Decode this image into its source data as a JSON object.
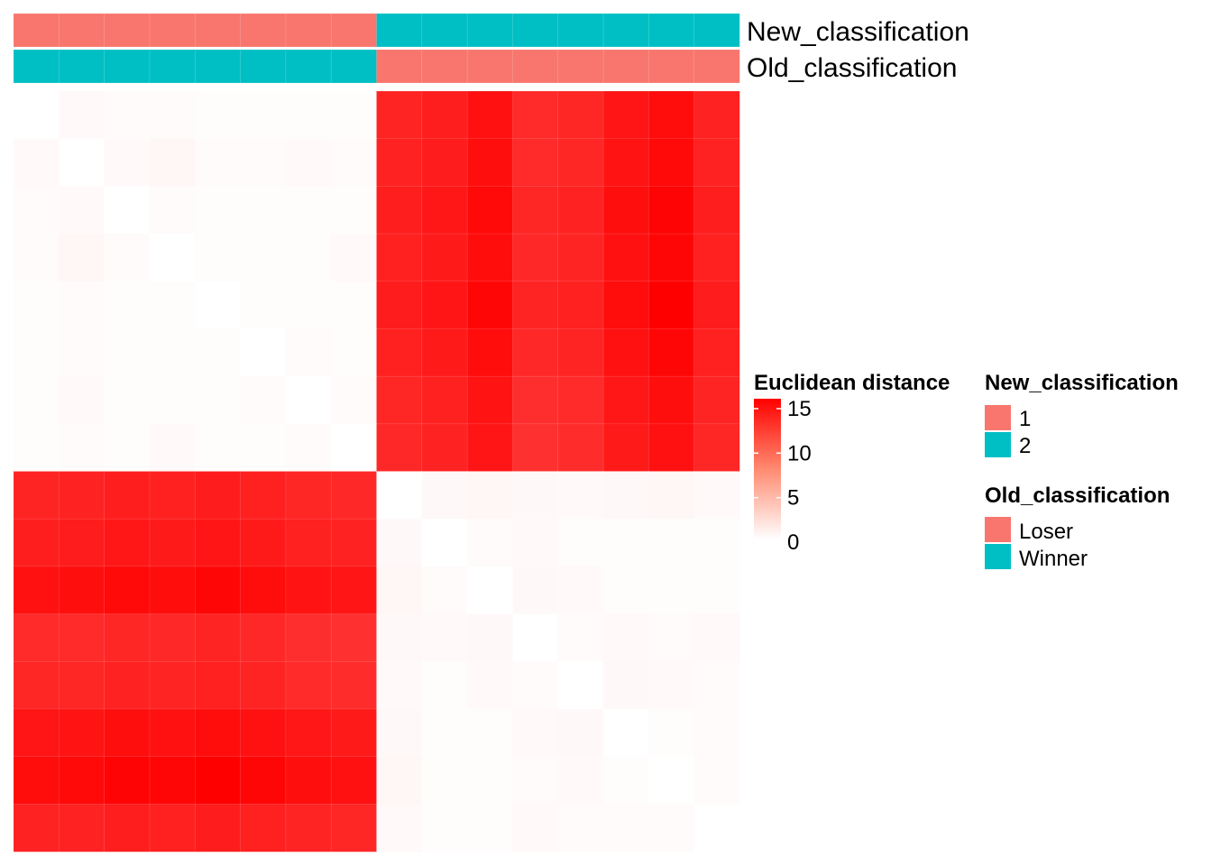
{
  "chart_data": {
    "type": "heatmap",
    "row_count": 16,
    "col_count": 16,
    "annotations": [
      {
        "name": "New_classification",
        "values": [
          "1",
          "1",
          "1",
          "1",
          "1",
          "1",
          "1",
          "1",
          "2",
          "2",
          "2",
          "2",
          "2",
          "2",
          "2",
          "2"
        ]
      },
      {
        "name": "Old_classification",
        "values": [
          "Winner",
          "Winner",
          "Winner",
          "Winner",
          "Winner",
          "Winner",
          "Winner",
          "Winner",
          "Loser",
          "Loser",
          "Loser",
          "Loser",
          "Loser",
          "Loser",
          "Loser",
          "Loser"
        ]
      }
    ],
    "matrix": [
      [
        0.0,
        0.4,
        0.3,
        0.3,
        0.2,
        0.2,
        0.2,
        0.2,
        13.5,
        13.8,
        14.4,
        13.2,
        13.4,
        14.2,
        14.6,
        13.6
      ],
      [
        0.4,
        0.0,
        0.4,
        0.6,
        0.3,
        0.3,
        0.4,
        0.3,
        13.6,
        13.9,
        14.5,
        13.2,
        13.4,
        14.3,
        14.7,
        13.6
      ],
      [
        0.3,
        0.4,
        0.0,
        0.3,
        0.2,
        0.2,
        0.2,
        0.2,
        13.8,
        14.1,
        14.7,
        13.4,
        13.6,
        14.5,
        14.9,
        13.8
      ],
      [
        0.3,
        0.6,
        0.3,
        0.0,
        0.2,
        0.2,
        0.2,
        0.4,
        13.7,
        14.0,
        14.6,
        13.3,
        13.5,
        14.4,
        14.8,
        13.7
      ],
      [
        0.2,
        0.3,
        0.2,
        0.2,
        0.0,
        0.2,
        0.2,
        0.2,
        13.9,
        14.2,
        14.8,
        13.5,
        13.7,
        14.6,
        15.0,
        13.9
      ],
      [
        0.2,
        0.3,
        0.2,
        0.2,
        0.2,
        0.0,
        0.3,
        0.2,
        13.7,
        14.0,
        14.6,
        13.3,
        13.5,
        14.4,
        14.8,
        13.7
      ],
      [
        0.2,
        0.4,
        0.2,
        0.2,
        0.2,
        0.3,
        0.0,
        0.3,
        13.4,
        13.7,
        14.3,
        13.0,
        13.2,
        14.1,
        14.5,
        13.5
      ],
      [
        0.2,
        0.3,
        0.2,
        0.4,
        0.2,
        0.2,
        0.3,
        0.0,
        13.3,
        13.6,
        14.2,
        12.9,
        13.1,
        14.0,
        14.4,
        13.4
      ],
      [
        13.5,
        13.6,
        13.8,
        13.7,
        13.9,
        13.7,
        13.4,
        13.3,
        0.0,
        0.5,
        0.6,
        0.5,
        0.4,
        0.5,
        0.6,
        0.4
      ],
      [
        13.8,
        13.9,
        14.1,
        14.0,
        14.2,
        14.0,
        13.7,
        13.6,
        0.5,
        0.0,
        0.3,
        0.4,
        0.2,
        0.2,
        0.2,
        0.2
      ],
      [
        14.4,
        14.5,
        14.7,
        14.6,
        14.8,
        14.6,
        14.3,
        14.2,
        0.6,
        0.3,
        0.0,
        0.5,
        0.4,
        0.2,
        0.2,
        0.2
      ],
      [
        13.2,
        13.2,
        13.4,
        13.3,
        13.5,
        13.3,
        13.0,
        12.9,
        0.5,
        0.4,
        0.5,
        0.0,
        0.3,
        0.4,
        0.3,
        0.4
      ],
      [
        13.4,
        13.4,
        13.6,
        13.5,
        13.7,
        13.5,
        13.2,
        13.1,
        0.4,
        0.2,
        0.4,
        0.3,
        0.0,
        0.5,
        0.4,
        0.3
      ],
      [
        14.2,
        14.3,
        14.5,
        14.4,
        14.6,
        14.4,
        14.1,
        14.0,
        0.5,
        0.2,
        0.2,
        0.4,
        0.5,
        0.0,
        0.2,
        0.3
      ],
      [
        14.6,
        14.7,
        14.9,
        14.8,
        15.0,
        14.8,
        14.5,
        14.4,
        0.6,
        0.2,
        0.2,
        0.3,
        0.4,
        0.2,
        0.0,
        0.3
      ],
      [
        13.6,
        13.6,
        13.8,
        13.7,
        13.9,
        13.7,
        13.5,
        13.4,
        0.4,
        0.2,
        0.2,
        0.4,
        0.3,
        0.3,
        0.3,
        0.0
      ]
    ],
    "color_scale": {
      "min": 0,
      "max": 15,
      "low_color": "#FFFFFF",
      "high_color": "#FF0000",
      "ticks": [
        0,
        5,
        10,
        15
      ],
      "title": "Euclidean distance"
    },
    "legends": [
      {
        "title": "New_classification",
        "entries": [
          {
            "label": "1",
            "color": "#F8766D"
          },
          {
            "label": "2",
            "color": "#00BFC4"
          }
        ]
      },
      {
        "title": "Old_classification",
        "entries": [
          {
            "label": "Loser",
            "color": "#F8766D"
          },
          {
            "label": "Winner",
            "color": "#00BFC4"
          }
        ]
      }
    ],
    "annotation_colors": {
      "New_classification": {
        "1": "#F8766D",
        "2": "#00BFC4"
      },
      "Old_classification": {
        "Loser": "#F8766D",
        "Winner": "#00BFC4"
      }
    }
  }
}
